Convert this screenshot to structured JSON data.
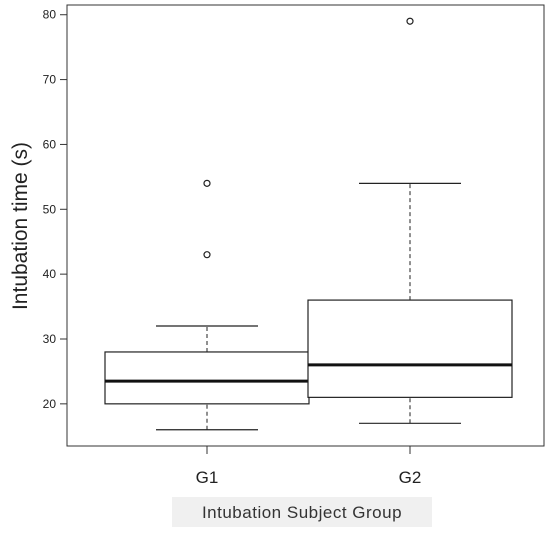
{
  "chart_data": {
    "type": "boxplot",
    "title": "",
    "xlabel": "Intubation Subject Group",
    "ylabel": "Intubation time (s)",
    "categories": [
      "G1",
      "G2"
    ],
    "ylim": [
      13.5,
      81.5
    ],
    "yticks": [
      20,
      30,
      40,
      50,
      60,
      70,
      80
    ],
    "grid": false,
    "series": [
      {
        "category": "G1",
        "whisker_low": 16,
        "q1": 20,
        "median": 23.5,
        "q3": 28,
        "whisker_high": 32,
        "outliers": [
          43,
          54
        ]
      },
      {
        "category": "G2",
        "whisker_low": 17,
        "q1": 21,
        "median": 26,
        "q3": 36,
        "whisker_high": 54,
        "outliers": [
          79
        ]
      }
    ]
  }
}
